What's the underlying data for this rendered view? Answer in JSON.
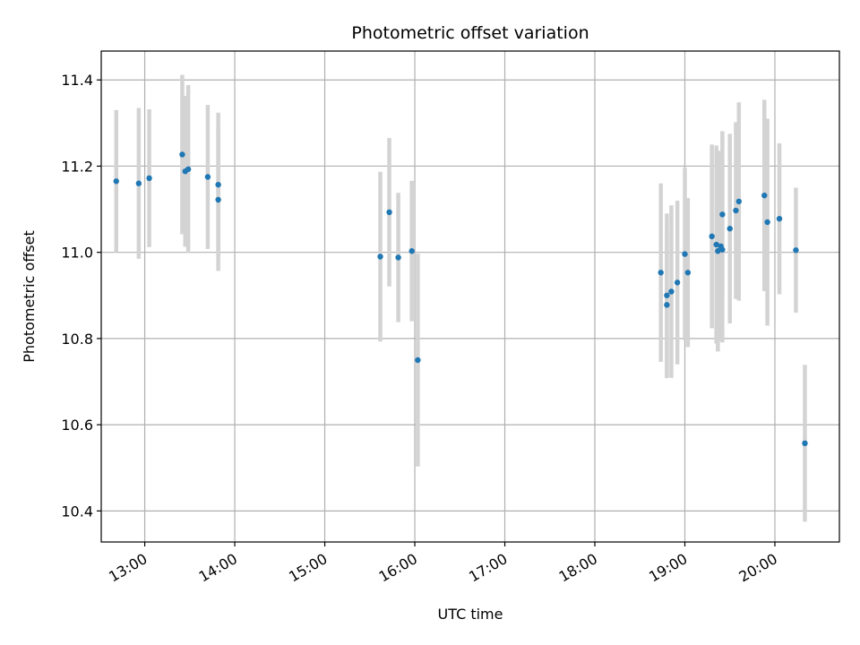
{
  "chart_data": {
    "type": "scatter",
    "title": "Photometric offset variation",
    "xlabel": "UTC time",
    "ylabel": "Photometric offset",
    "xlim": [
      "12:31",
      "20:43"
    ],
    "ylim": [
      10.328,
      11.467
    ],
    "x_ticks": [
      "13:00",
      "14:00",
      "15:00",
      "16:00",
      "17:00",
      "18:00",
      "19:00",
      "20:00"
    ],
    "y_ticks": [
      10.4,
      10.6,
      10.8,
      11.0,
      11.2,
      11.4
    ],
    "y_tick_labels": [
      "10.4",
      "10.6",
      "10.8",
      "11.0",
      "11.2",
      "11.4"
    ],
    "grid": true,
    "point_color": "#1f77b4",
    "errorbar_color": "#d3d3d3",
    "points": [
      {
        "x": "12:41",
        "y": 11.165,
        "err": 0.165
      },
      {
        "x": "12:56",
        "y": 11.16,
        "err": 0.175
      },
      {
        "x": "13:03",
        "y": 11.172,
        "err": 0.16
      },
      {
        "x": "13:25",
        "y": 11.227,
        "err": 0.185
      },
      {
        "x": "13:27",
        "y": 11.188,
        "err": 0.175
      },
      {
        "x": "13:29",
        "y": 11.193,
        "err": 0.195
      },
      {
        "x": "13:42",
        "y": 11.175,
        "err": 0.167
      },
      {
        "x": "13:49",
        "y": 11.157,
        "err": 0.167
      },
      {
        "x": "13:49",
        "y": 11.122,
        "err": 0.165
      },
      {
        "x": "15:37",
        "y": 10.99,
        "err": 0.197
      },
      {
        "x": "15:43",
        "y": 11.093,
        "err": 0.172
      },
      {
        "x": "15:49",
        "y": 10.988,
        "err": 0.15
      },
      {
        "x": "15:58",
        "y": 11.003,
        "err": 0.163
      },
      {
        "x": "16:02",
        "y": 10.75,
        "err": 0.247
      },
      {
        "x": "18:44",
        "y": 10.953,
        "err": 0.207
      },
      {
        "x": "18:48",
        "y": 10.9,
        "err": 0.19
      },
      {
        "x": "18:48",
        "y": 10.878,
        "err": 0.17
      },
      {
        "x": "18:51",
        "y": 10.909,
        "err": 0.2
      },
      {
        "x": "18:55",
        "y": 10.93,
        "err": 0.19
      },
      {
        "x": "19:00",
        "y": 10.996,
        "err": 0.2
      },
      {
        "x": "19:02",
        "y": 10.953,
        "err": 0.173
      },
      {
        "x": "19:18",
        "y": 11.037,
        "err": 0.213
      },
      {
        "x": "19:21",
        "y": 11.018,
        "err": 0.23
      },
      {
        "x": "19:22",
        "y": 11.003,
        "err": 0.233
      },
      {
        "x": "19:24",
        "y": 11.014,
        "err": 0.22
      },
      {
        "x": "19:25",
        "y": 11.006,
        "err": 0.215
      },
      {
        "x": "19:25",
        "y": 11.088,
        "err": 0.193
      },
      {
        "x": "19:30",
        "y": 11.055,
        "err": 0.22
      },
      {
        "x": "19:34",
        "y": 11.097,
        "err": 0.205
      },
      {
        "x": "19:36",
        "y": 11.118,
        "err": 0.23
      },
      {
        "x": "19:53",
        "y": 11.132,
        "err": 0.222
      },
      {
        "x": "19:55",
        "y": 11.07,
        "err": 0.24
      },
      {
        "x": "20:03",
        "y": 11.078,
        "err": 0.175
      },
      {
        "x": "20:14",
        "y": 11.005,
        "err": 0.145
      },
      {
        "x": "20:20",
        "y": 10.557,
        "err": 0.182
      }
    ]
  }
}
